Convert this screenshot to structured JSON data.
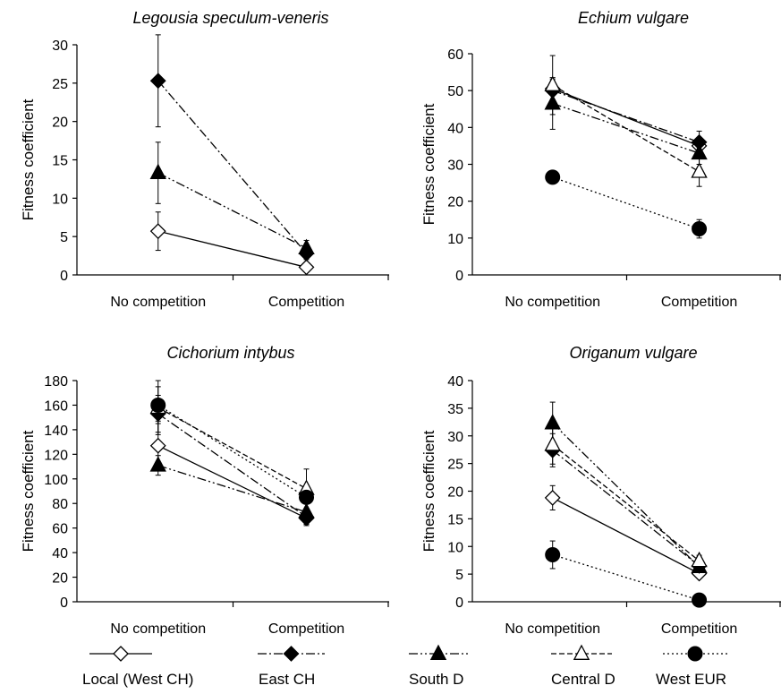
{
  "chart_data": [
    {
      "type": "line",
      "title": "Legousia speculum-veneris",
      "ylabel": "Fitness coefficient",
      "xlabel": "",
      "categories": [
        "No competition",
        "Competition"
      ],
      "ylim": [
        0,
        30
      ],
      "yticks": [
        0,
        5,
        10,
        15,
        20,
        25,
        30
      ],
      "series": [
        {
          "name": "Local (West CH)",
          "values": [
            5.7,
            1.0
          ],
          "err": [
            2.5,
            0.3
          ]
        },
        {
          "name": "East CH",
          "values": [
            25.3,
            2.8
          ],
          "err": [
            6.0,
            0.8
          ]
        },
        {
          "name": "South D",
          "values": [
            13.3,
            3.5
          ],
          "err": [
            4.0,
            1.0
          ]
        }
      ]
    },
    {
      "type": "line",
      "title": "Echium vulgare",
      "ylabel": "Fitness coefficient",
      "xlabel": "",
      "categories": [
        "No competition",
        "Competition"
      ],
      "ylim": [
        0,
        60
      ],
      "yticks": [
        0,
        10,
        20,
        30,
        40,
        50,
        60
      ],
      "series": [
        {
          "name": "Local (West CH)",
          "values": [
            50.5,
            35.0
          ],
          "err": [
            3.0,
            2.0
          ]
        },
        {
          "name": "East CH",
          "values": [
            50.0,
            36.0
          ],
          "err": [
            3.0,
            3.0
          ]
        },
        {
          "name": "South D",
          "values": [
            46.5,
            33.0
          ],
          "err": [
            7.0,
            3.0
          ]
        },
        {
          "name": "Central D",
          "values": [
            51.5,
            28.0
          ],
          "err": [
            8.0,
            4.0
          ]
        },
        {
          "name": "West EUR",
          "values": [
            26.5,
            12.5
          ],
          "err": [
            1.5,
            2.5
          ]
        }
      ]
    },
    {
      "type": "line",
      "title": "Cichorium intybus",
      "ylabel": "Fitness coefficient",
      "xlabel": "",
      "categories": [
        "No competition",
        "Competition"
      ],
      "ylim": [
        0,
        180
      ],
      "yticks": [
        0,
        20,
        40,
        60,
        80,
        100,
        120,
        140,
        160,
        180
      ],
      "series": [
        {
          "name": "Local (West CH)",
          "values": [
            127,
            68
          ],
          "err": [
            20,
            6
          ]
        },
        {
          "name": "East CH",
          "values": [
            153,
            69
          ],
          "err": [
            15,
            6
          ]
        },
        {
          "name": "South D",
          "values": [
            111,
            73
          ],
          "err": [
            8,
            8
          ]
        },
        {
          "name": "Central D",
          "values": [
            158,
            92
          ],
          "err": [
            22,
            16
          ]
        },
        {
          "name": "West EUR",
          "values": [
            160,
            85
          ],
          "err": [
            15,
            10
          ]
        }
      ]
    },
    {
      "type": "line",
      "title": "Origanum vulgare",
      "ylabel": "Fitness coefficient",
      "xlabel": "",
      "categories": [
        "No competition",
        "Competition"
      ],
      "ylim": [
        0,
        40
      ],
      "yticks": [
        0,
        5,
        10,
        15,
        20,
        25,
        30,
        35,
        40
      ],
      "series": [
        {
          "name": "Local (West CH)",
          "values": [
            18.8,
            5.1
          ],
          "err": [
            2.2,
            0.5
          ]
        },
        {
          "name": "East CH",
          "values": [
            27.4,
            6.5
          ],
          "err": [
            3.0,
            1.0
          ]
        },
        {
          "name": "South D",
          "values": [
            32.3,
            6.3
          ],
          "err": [
            3.8,
            1.0
          ]
        },
        {
          "name": "Central D",
          "values": [
            28.4,
            7.4
          ],
          "err": [
            3.5,
            1.0
          ]
        },
        {
          "name": "West EUR",
          "values": [
            8.5,
            0.3
          ],
          "err": [
            2.5,
            0.2
          ]
        }
      ]
    }
  ],
  "legend": [
    {
      "name": "Local (West CH)",
      "marker": "diamond-open",
      "line": "solid"
    },
    {
      "name": "East CH",
      "marker": "diamond-filled",
      "line": "dashdot"
    },
    {
      "name": "South D",
      "marker": "triangle-filled",
      "line": "dashdotdot"
    },
    {
      "name": "Central D",
      "marker": "triangle-open",
      "line": "dashed"
    },
    {
      "name": "West EUR",
      "marker": "circle-filled",
      "line": "dotted"
    }
  ]
}
